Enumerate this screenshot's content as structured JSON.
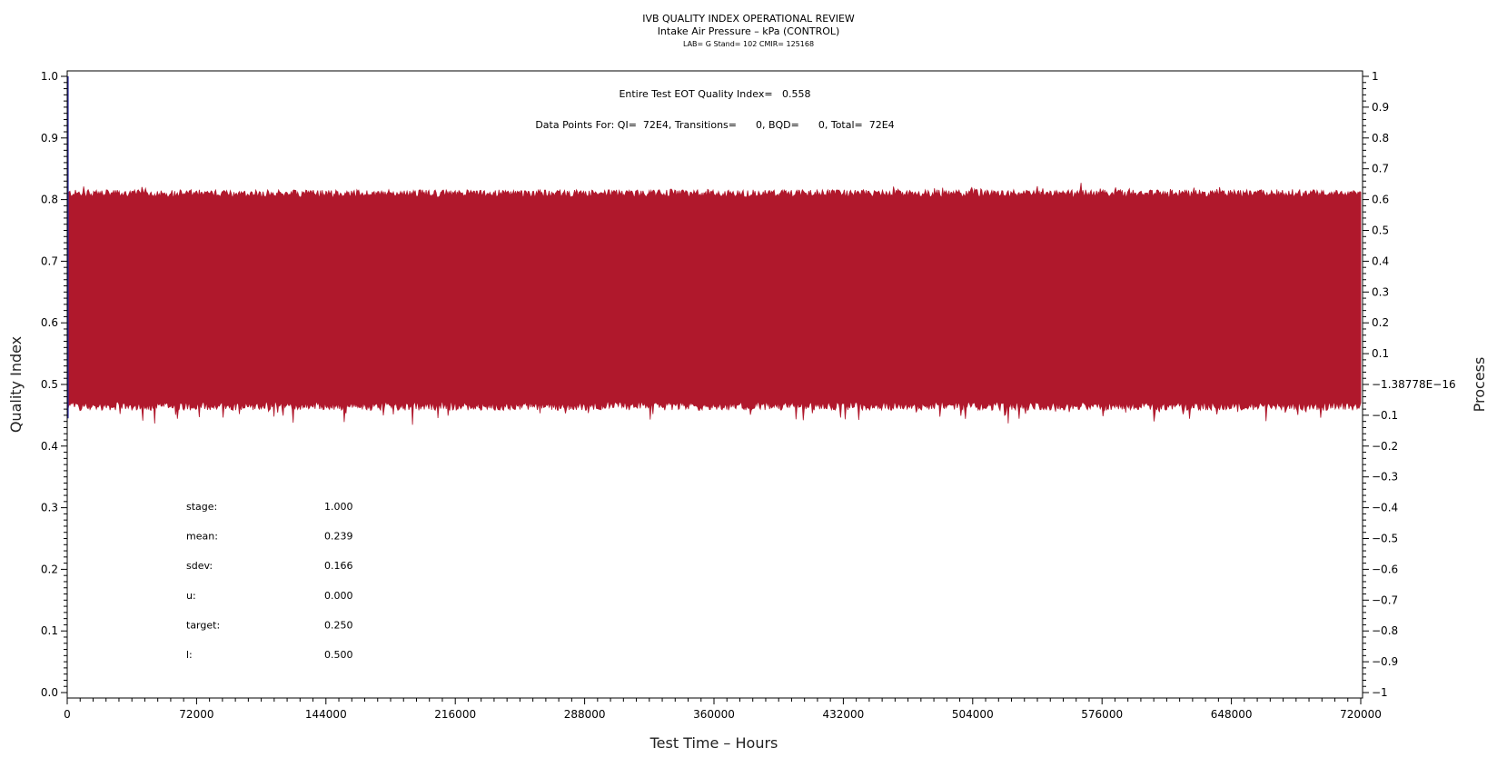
{
  "chart_data": {
    "type": "area",
    "title": "IVB QUALITY INDEX OPERATIONAL REVIEW",
    "subtitle": "Intake Air Pressure – kPa (CONTROL)",
    "subtitle2": "LAB= G Stand= 102 CMIR= 125168",
    "xlabel": "Test Time – Hours",
    "ylabel": "Quality Index",
    "y2label": "Process",
    "xlim": [
      0,
      720000
    ],
    "ylim": [
      0,
      1.0
    ],
    "y2lim": [
      -1,
      1
    ],
    "x_ticks": [
      "0",
      "72000",
      "144000",
      "216000",
      "288000",
      "360000",
      "432000",
      "504000",
      "576000",
      "648000",
      "720000"
    ],
    "y_ticks": [
      "0.0",
      "0.1",
      "0.2",
      "0.3",
      "0.4",
      "0.5",
      "0.6",
      "0.7",
      "0.8",
      "0.9",
      "1.0"
    ],
    "y2_ticks": [
      "−1",
      "−0.9",
      "−0.8",
      "−0.7",
      "−0.6",
      "−0.5",
      "−0.4",
      "−0.3",
      "−0.2",
      "−0.1",
      "−1.38778E−16",
      "0.1",
      "0.2",
      "0.3",
      "0.4",
      "0.5",
      "0.6",
      "0.7",
      "0.8",
      "0.9",
      "1"
    ],
    "annotation_eot": "Entire Test EOT Quality Index=   0.558",
    "annotation_points": "Data Points For: QI=  72E4, Transitions=      0, BQD=      0, Total=  72E4",
    "stats": [
      {
        "label": "stage:",
        "value": "1.000"
      },
      {
        "label": "mean:",
        "value": "0.239"
      },
      {
        "label": "sdev:",
        "value": "0.166"
      },
      {
        "label": "u:",
        "value": "0.000"
      },
      {
        "label": "target:",
        "value": "0.250"
      },
      {
        "label": "l:",
        "value": "0.500"
      }
    ],
    "series": [
      {
        "color": "#b0182c",
        "band_upper_mean": 0.81,
        "band_lower_mean": 0.465,
        "spike": {
          "x": 0,
          "y": 1.0,
          "color": "#2a2aa8"
        },
        "upper_peak_values": [
          0.826,
          0.819,
          0.818,
          0.812,
          0.815,
          0.814,
          0.816,
          0.821,
          0.824,
          0.817,
          0.822
        ],
        "lower_dip_values": [
          0.44,
          0.44,
          0.427,
          0.445,
          0.44,
          0.442,
          0.435,
          0.44,
          0.437,
          0.445,
          0.445
        ]
      }
    ],
    "grid": false,
    "colors": {
      "series": "#b0182c",
      "spike": "#2a2aa8",
      "axis": "#000000"
    }
  }
}
